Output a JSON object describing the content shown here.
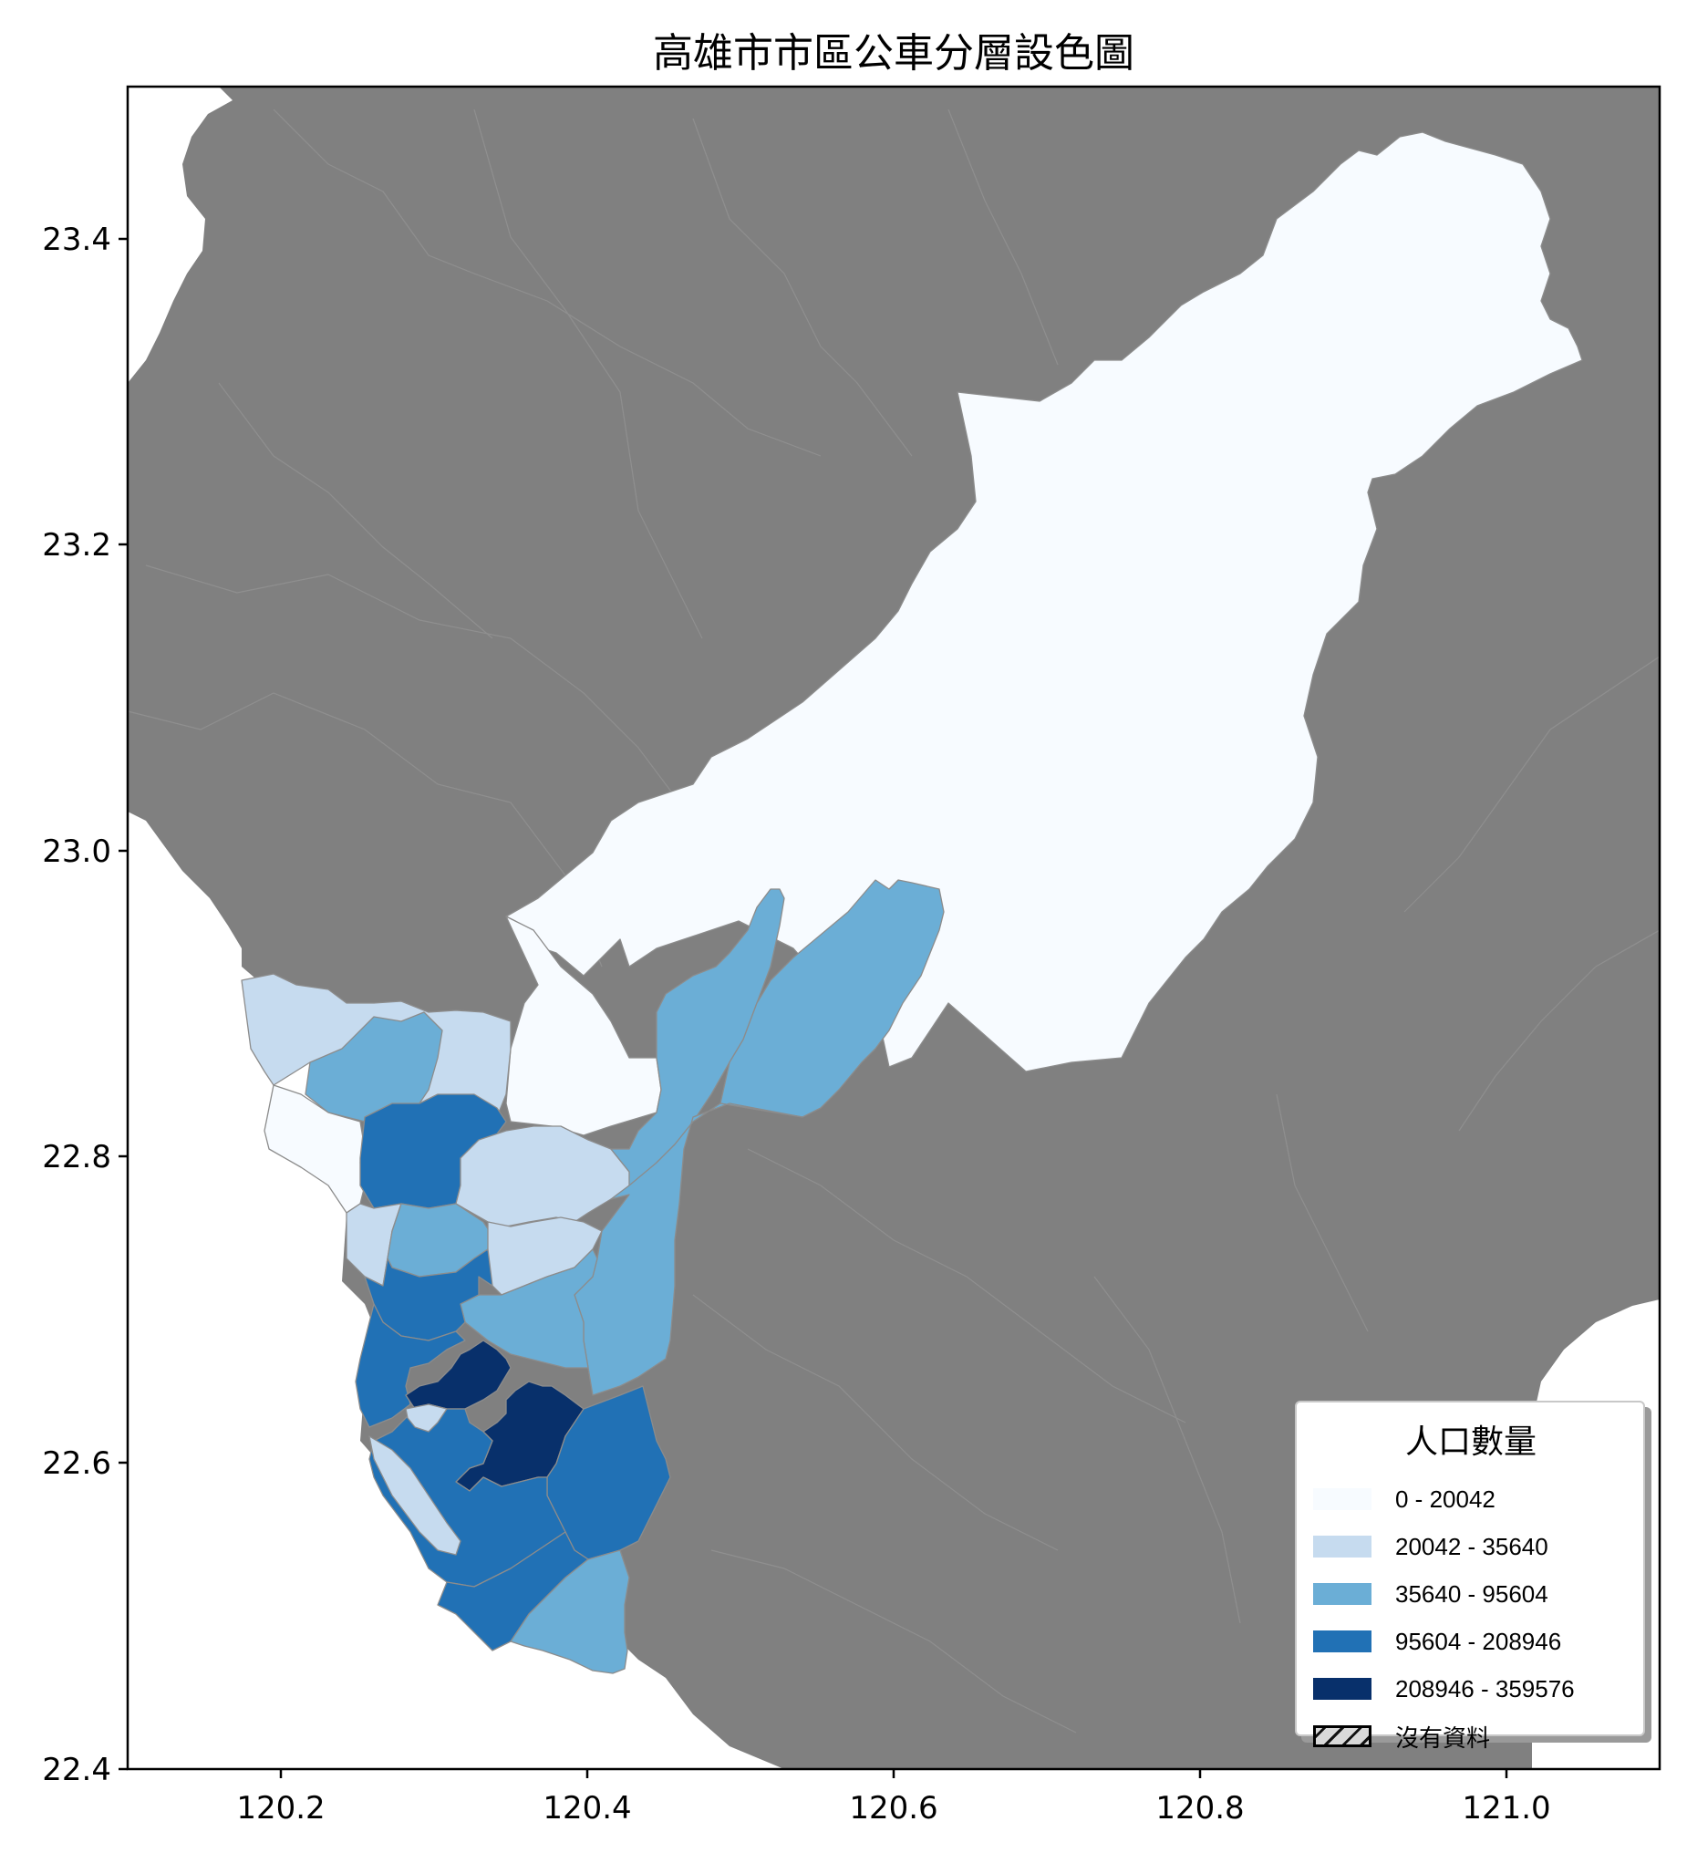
{
  "title": "高雄市市區公車分層設色圖",
  "colors": {
    "background_land": "#808080",
    "district_border": "#8c8c8c",
    "class_0": "#f7fbff",
    "class_1": "#c6dbef",
    "class_2": "#6baed6",
    "class_3": "#2171b5",
    "class_4": "#08306b",
    "no_data": "#d9d9d9"
  },
  "axes": {
    "x_ticks": [
      "120.2",
      "120.4",
      "120.6",
      "120.8",
      "121.0"
    ],
    "y_ticks": [
      "23.4",
      "23.2",
      "23.0",
      "22.8",
      "22.6",
      "22.4"
    ],
    "xlim": [
      120.1,
      121.1
    ],
    "ylim": [
      22.4,
      23.5
    ]
  },
  "legend": {
    "title": "人口數量",
    "placement": "lower-right",
    "items": [
      {
        "label": "0 - 20042",
        "color": "#f7fbff"
      },
      {
        "label": "20042 - 35640",
        "color": "#c6dbef"
      },
      {
        "label": "35640 - 95604",
        "color": "#6baed6"
      },
      {
        "label": "95604 - 208946",
        "color": "#2171b5"
      },
      {
        "label": "208946 - 359576",
        "color": "#08306b"
      },
      {
        "label": "沒有資料",
        "color": "#d9d9d9",
        "hatch": true
      }
    ]
  }
}
